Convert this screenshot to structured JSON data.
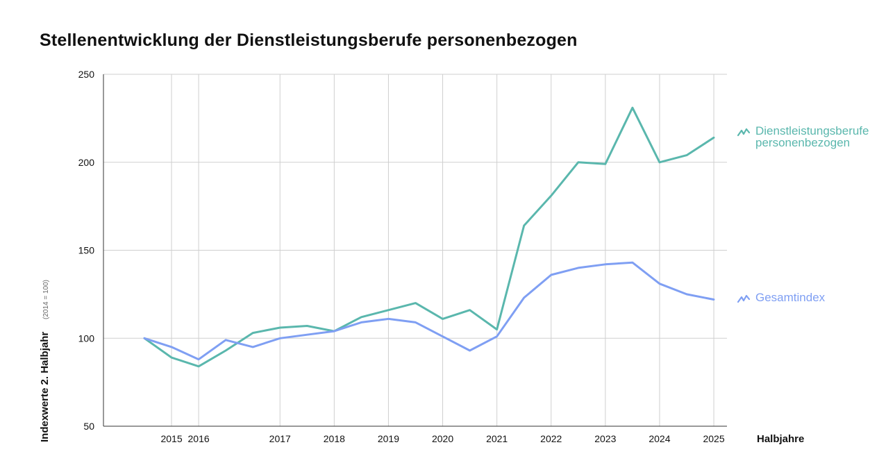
{
  "title": "Stellenentwicklung der Dienstleistungsberufe personenbezogen",
  "chart_data": {
    "type": "line",
    "title": "Stellenentwicklung der Dienstleistungsberufe personenbezogen",
    "xlabel": "Halbjahre",
    "ylabel": "Indexwerte 2. Halbjahr",
    "ylabel_note": "(2014 = 100)",
    "x": [
      "2014 H2",
      "2015 H1",
      "2015 H2",
      "2016 H1",
      "2016 H2",
      "2017 H1",
      "2017 H2",
      "2018 H1",
      "2018 H2",
      "2019 H1",
      "2019 H2",
      "2020 H1",
      "2020 H2",
      "2021 H1",
      "2021 H2",
      "2022 H1",
      "2022 H2",
      "2023 H1",
      "2023 H2",
      "2024 H1",
      "2024 H2",
      "2025 H1"
    ],
    "x_tick_labels": [
      "2015",
      "2016",
      "2017",
      "2018",
      "2019",
      "2020",
      "2021",
      "2022",
      "2023",
      "2024",
      "2025"
    ],
    "x_tick_positions": [
      "2015 H1",
      "2015 H2",
      "2017 H1",
      "2018 H1",
      "2019 H1",
      "2020 H1",
      "2021 H1",
      "2022 H1",
      "2023 H1",
      "2024 H1",
      "2025 H1"
    ],
    "y_ticks": [
      50,
      100,
      150,
      200,
      250
    ],
    "ylim": [
      50,
      250
    ],
    "grid": true,
    "legend_placement": "right",
    "series": [
      {
        "name": "Dienstleistungsberufe personenbezogen",
        "color": "#5ab7ad",
        "values": [
          100,
          89,
          84,
          93,
          103,
          106,
          107,
          104,
          112,
          116,
          120,
          111,
          116,
          105,
          164,
          181,
          200,
          199,
          231,
          200,
          204,
          214
        ]
      },
      {
        "name": "Gesamtindex",
        "color": "#7f9ff3",
        "values": [
          100,
          95,
          88,
          99,
          95,
          100,
          102,
          104,
          109,
          111,
          109,
          101,
          93,
          101,
          123,
          136,
          140,
          142,
          143,
          131,
          125,
          122
        ]
      }
    ]
  },
  "legend": [
    {
      "label": "Dienstleistungsberufe\npersonenbezogen",
      "color": "#5ab7ad",
      "icon": "trend-line-icon"
    },
    {
      "label": "Gesamtindex",
      "color": "#7f9ff3",
      "icon": "trend-line-icon"
    }
  ]
}
